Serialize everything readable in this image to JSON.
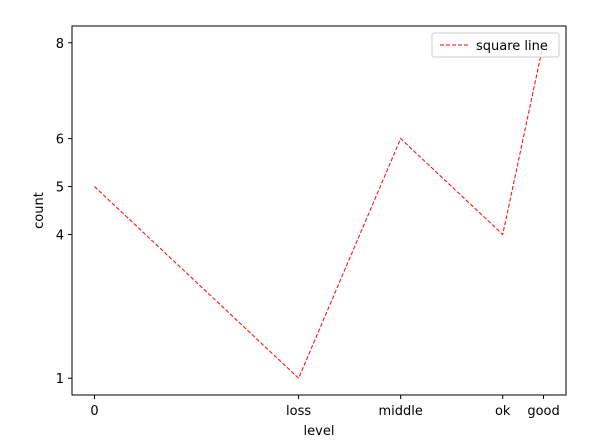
{
  "chart_data": {
    "type": "line",
    "xlabel": "level",
    "ylabel": "count",
    "x_ticks": [
      "0",
      "loss",
      "middle",
      "ok",
      "good"
    ],
    "x_positions": [
      0,
      10,
      15,
      20,
      22
    ],
    "y_ticks": [
      "1",
      "4",
      "5",
      "6",
      "8"
    ],
    "y_positions": [
      1,
      4,
      5,
      6,
      8
    ],
    "xlim": [
      -1.1,
      23.1
    ],
    "ylim": [
      0.65,
      8.35
    ],
    "series": [
      {
        "name": "square line",
        "x": [
          0,
          10,
          15,
          20,
          22
        ],
        "y": [
          5,
          1,
          6,
          4,
          8
        ],
        "color": "#ff0000",
        "linestyle": "dashed"
      }
    ],
    "legend": {
      "position": "top-right"
    },
    "grid": false
  }
}
